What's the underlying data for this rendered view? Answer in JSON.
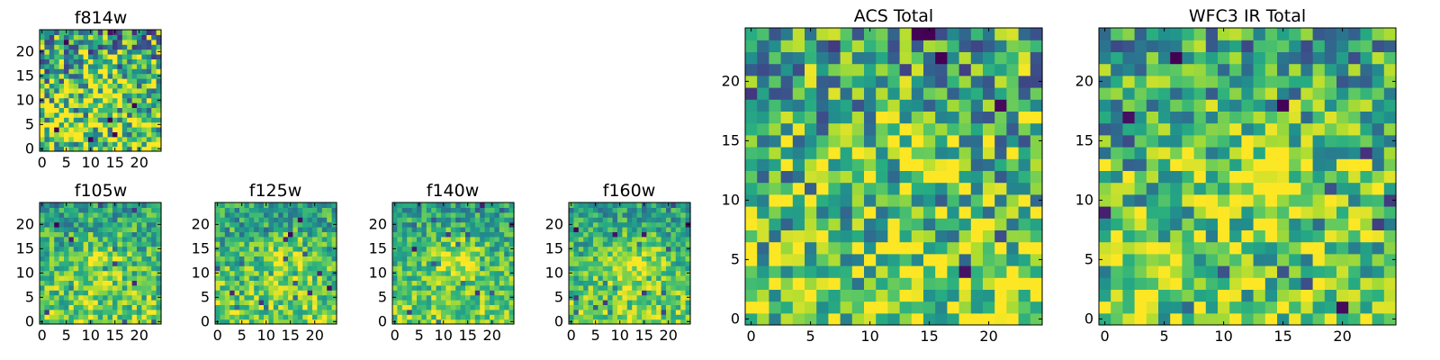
{
  "chart_data": [
    {
      "type": "heatmap",
      "title": "f814w",
      "xlim": [
        0,
        24
      ],
      "ylim": [
        0,
        24
      ],
      "xticks": [
        "0",
        "5",
        "10",
        "15",
        "20"
      ],
      "yticks": [
        "0",
        "5",
        "10",
        "15",
        "20"
      ],
      "blob": [
        13,
        13,
        2.5
      ],
      "seed": 11,
      "contrast": 0.45
    },
    {
      "type": "heatmap",
      "title": "f105w",
      "xlim": [
        0,
        24
      ],
      "ylim": [
        0,
        24
      ],
      "xticks": [
        "0",
        "5",
        "10",
        "15",
        "20"
      ],
      "yticks": [
        "0",
        "5",
        "10",
        "15",
        "20"
      ],
      "blob": [
        12,
        12,
        3.5
      ],
      "seed": 21,
      "contrast": 0.25
    },
    {
      "type": "heatmap",
      "title": "f125w",
      "xlim": [
        0,
        24
      ],
      "ylim": [
        0,
        24
      ],
      "xticks": [
        "0",
        "5",
        "10",
        "15",
        "20"
      ],
      "yticks": [
        "0",
        "5",
        "10",
        "15",
        "20"
      ],
      "blob": [
        14,
        13,
        3.5
      ],
      "seed": 31,
      "contrast": 0.25
    },
    {
      "type": "heatmap",
      "title": "f140w",
      "xlim": [
        0,
        24
      ],
      "ylim": [
        0,
        24
      ],
      "xticks": [
        "0",
        "5",
        "10",
        "15",
        "20"
      ],
      "yticks": [
        "0",
        "5",
        "10",
        "15",
        "20"
      ],
      "blob": [
        13,
        13,
        3.5
      ],
      "seed": 41,
      "contrast": 0.22
    },
    {
      "type": "heatmap",
      "title": "f160w",
      "xlim": [
        0,
        24
      ],
      "ylim": [
        0,
        24
      ],
      "xticks": [
        "0",
        "5",
        "10",
        "15",
        "20"
      ],
      "yticks": [
        "0",
        "5",
        "10",
        "15",
        "20"
      ],
      "blob": [
        13,
        12,
        4
      ],
      "seed": 51,
      "contrast": 0.22
    },
    {
      "type": "heatmap",
      "title": "ACS Total",
      "xlim": [
        0,
        24
      ],
      "ylim": [
        0,
        24
      ],
      "xticks": [
        "0",
        "5",
        "10",
        "15",
        "20"
      ],
      "yticks": [
        "0",
        "5",
        "10",
        "15",
        "20"
      ],
      "blob": [
        13,
        13,
        2.5
      ],
      "seed": 61,
      "contrast": 0.4
    },
    {
      "type": "heatmap",
      "title": "WFC3 IR Total",
      "xlim": [
        0,
        24
      ],
      "ylim": [
        0,
        24
      ],
      "xticks": [
        "0",
        "5",
        "10",
        "15",
        "20"
      ],
      "yticks": [
        "0",
        "5",
        "10",
        "15",
        "20"
      ],
      "blob": [
        13,
        13,
        3
      ],
      "seed": 71,
      "contrast": 0.35
    }
  ]
}
